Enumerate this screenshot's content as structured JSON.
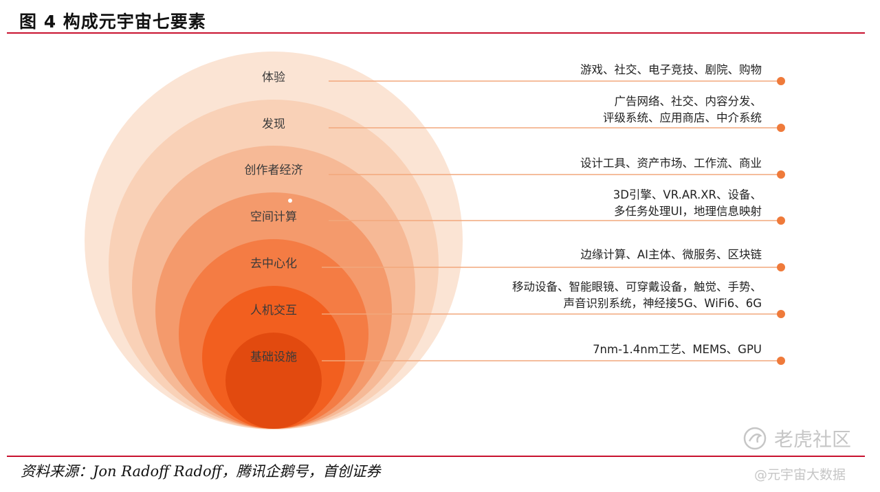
{
  "figure": {
    "title": "图 4 构成元宇宙七要素",
    "source": "资料来源：Jon Radoff Radoff，腾讯企鹅号，首创证券"
  },
  "layers": [
    {
      "label": "体验",
      "lines": [
        "游戏、社交、电子竞技、剧院、购物"
      ],
      "color": "#fbe4d4"
    },
    {
      "label": "发现",
      "lines": [
        "广告网络、社交、内容分发、",
        "评级系统、应用商店、中介系统"
      ],
      "color": "#f9d1b7"
    },
    {
      "label": "创作者经济",
      "lines": [
        "设计工具、资产市场、工作流、商业"
      ],
      "color": "#f6b996"
    },
    {
      "label": "空间计算",
      "lines": [
        "3D引擎、VR.AR.XR、设备、",
        "多任务处理UI，地理信息映射"
      ],
      "color": "#f49a6c"
    },
    {
      "label": "去中心化",
      "lines": [
        "边缘计算、AI主体、微服务、区块链"
      ],
      "color": "#f47c44"
    },
    {
      "label": "人机交互",
      "lines": [
        "移动设备、智能眼镜、可穿戴设备，触觉、手势、",
        "声音识别系统，神经接5G、WiFi6、6G"
      ],
      "color": "#f25f1f"
    },
    {
      "label": "基础设施",
      "lines": [
        "7nm-1.4nm工艺、MEMS、GPU"
      ],
      "color": "#e24a0f"
    }
  ],
  "accent_color": "#c8102e",
  "connector_color": "#f2a77c",
  "dot_color": "#ef7a3a",
  "watermark": {
    "brand": "老虎社区",
    "handle": "@元宇宙大数据",
    "icon": "tiger-logo-icon"
  }
}
